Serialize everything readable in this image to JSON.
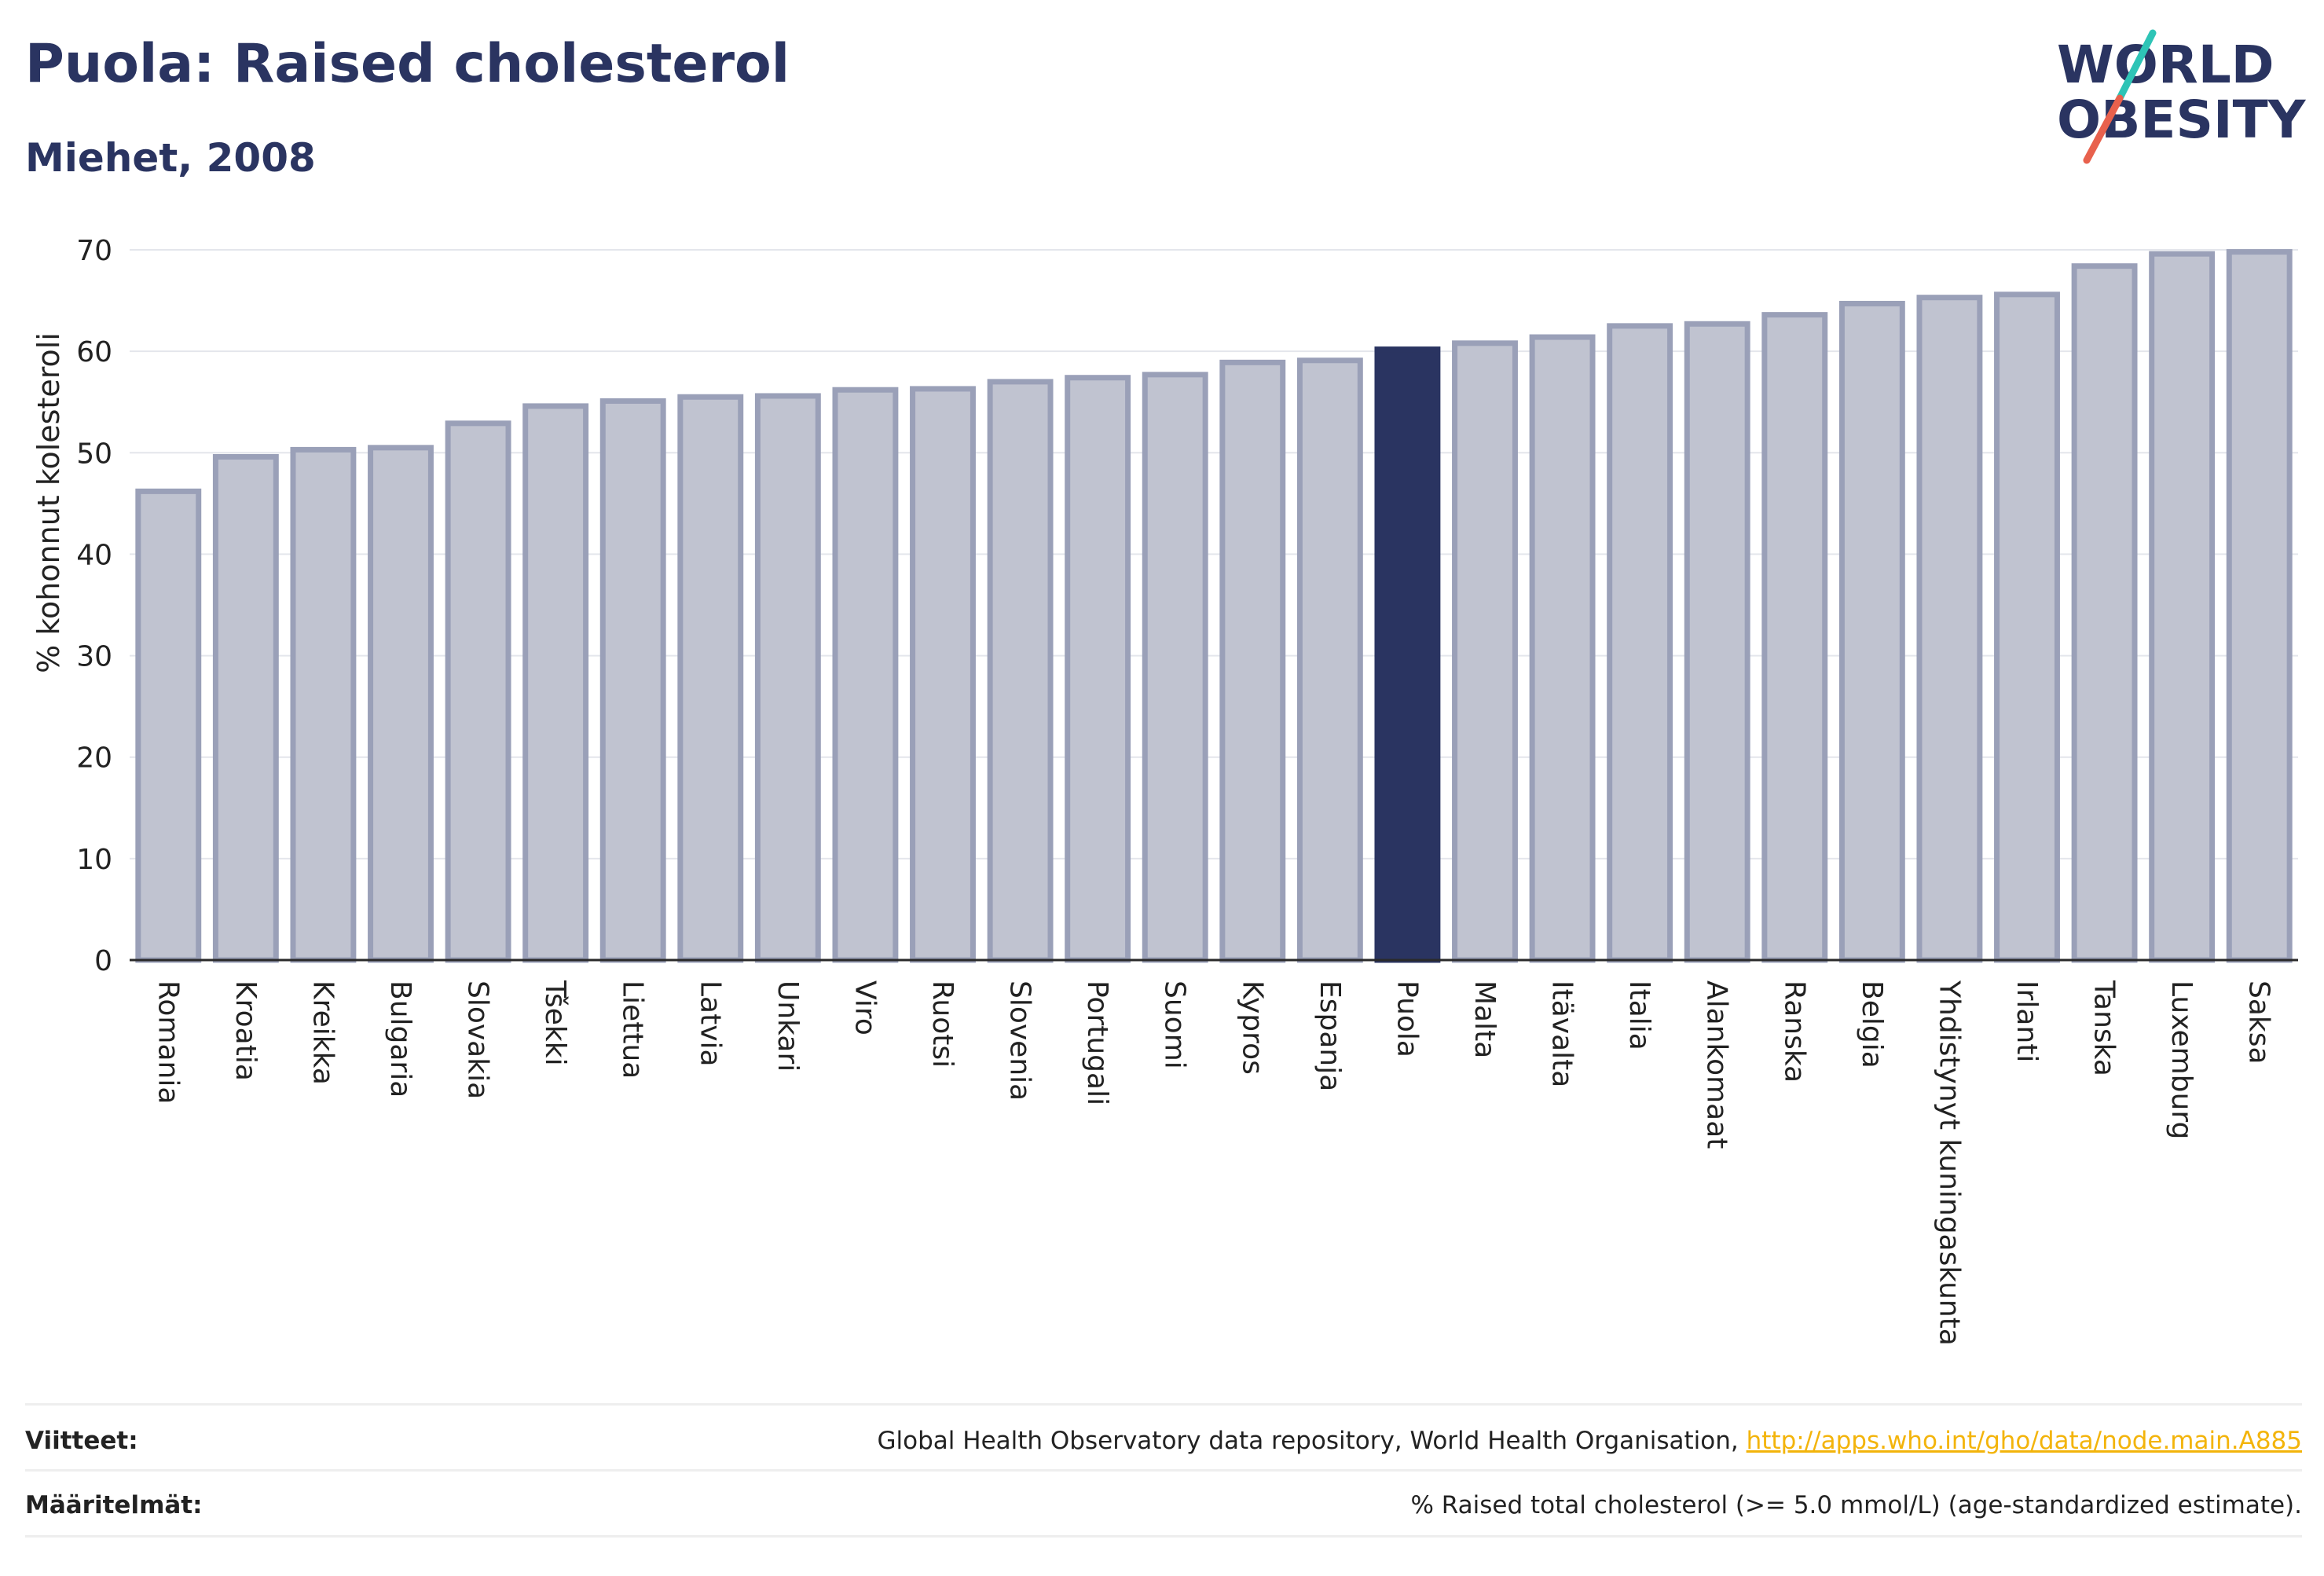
{
  "header": {
    "title": "Puola: Raised cholesterol",
    "subtitle": "Miehet, 2008"
  },
  "logo": {
    "line1": "WORLD",
    "line2": "OBESITY",
    "brand_color": "#2a3461",
    "slash_colors": [
      "#2ec4b6",
      "#e8614d"
    ]
  },
  "chart_data": {
    "type": "bar",
    "ylabel": "% kohonnut kolesteroli",
    "ylim": [
      0,
      70
    ],
    "yticks": [
      0,
      10,
      20,
      30,
      40,
      50,
      60,
      70
    ],
    "grid": true,
    "highlight": "Puola",
    "highlight_color": "#2a3461",
    "bar_color": "#c0c3d0",
    "bar_border_color": "#9aa0b8",
    "categories": [
      "Romania",
      "Kroatia",
      "Kreikka",
      "Bulgaria",
      "Slovakia",
      "Tšekki",
      "Liettua",
      "Latvia",
      "Unkari",
      "Viro",
      "Ruotsi",
      "Slovenia",
      "Portugali",
      "Suomi",
      "Kypros",
      "Espanja",
      "Puola",
      "Malta",
      "Itävalta",
      "Italia",
      "Alankomaat",
      "Ranska",
      "Belgia",
      "Yhdistynyt kuningaskunta",
      "Irlanti",
      "Tanska",
      "Luxemburg",
      "Saksa"
    ],
    "values": [
      46.2,
      49.6,
      50.3,
      50.5,
      52.9,
      54.6,
      55.1,
      55.5,
      55.6,
      56.2,
      56.3,
      57.0,
      57.4,
      57.7,
      58.9,
      59.1,
      60.2,
      60.8,
      61.4,
      62.5,
      62.7,
      63.6,
      64.7,
      65.3,
      65.6,
      68.4,
      69.6,
      69.8
    ]
  },
  "footer": {
    "sources_label": "Viitteet:",
    "sources_text": "Global Health Observatory data repository, World Health Organisation, ",
    "sources_link": "http://apps.who.int/gho/data/node.main.A885",
    "definitions_label": "Määritelmät:",
    "definitions_text": "% Raised total cholesterol (>= 5.0 mmol/L) (age-standardized estimate)."
  }
}
